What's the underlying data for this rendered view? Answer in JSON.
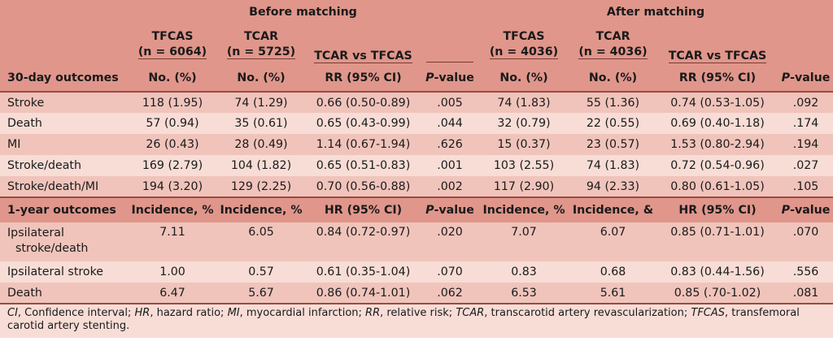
{
  "header": {
    "before": "Before matching",
    "after": "After matching",
    "before_tfcas": [
      "TFCAS",
      "(n = 6064)"
    ],
    "before_tcar": [
      "TCAR",
      "(n = 5725)"
    ],
    "before_cmp": "TCAR vs TFCAS",
    "after_tfcas": [
      "TFCAS",
      "(n = 4036)"
    ],
    "after_tcar": [
      "TCAR",
      "(n = 4036)"
    ],
    "after_cmp": "TCAR vs TFCAS",
    "row_label": "30-day outcomes",
    "c1": "No. (%)",
    "c2": "No. (%)",
    "c3": "RR (95% CI)",
    "c4_p": "P",
    "c4_rest": "-value",
    "c5": "No. (%)",
    "c6": "No. (%)",
    "c7": "RR (95% CI)",
    "c8_p": "P",
    "c8_rest": "-value"
  },
  "rows30": [
    {
      "label": "Stroke",
      "v": [
        "118 (1.95)",
        "74 (1.29)",
        "0.66 (0.50-0.89)",
        ".005",
        "74 (1.83)",
        "55 (1.36)",
        "0.74 (0.53-1.05)",
        ".092"
      ]
    },
    {
      "label": "Death",
      "v": [
        "57 (0.94)",
        "35 (0.61)",
        "0.65 (0.43-0.99)",
        ".044",
        "32 (0.79)",
        "22 (0.55)",
        "0.69 (0.40-1.18)",
        ".174"
      ]
    },
    {
      "label": "MI",
      "v": [
        "26 (0.43)",
        "28 (0.49)",
        "1.14 (0.67-1.94)",
        ".626",
        "15 (0.37)",
        "23 (0.57)",
        "1.53 (0.80-2.94)",
        ".194"
      ]
    },
    {
      "label": "Stroke/death",
      "v": [
        "169 (2.79)",
        "104 (1.82)",
        "0.65 (0.51-0.83)",
        ".001",
        "103 (2.55)",
        "74 (1.83)",
        "0.72 (0.54-0.96)",
        ".027"
      ]
    },
    {
      "label": "Stroke/death/MI",
      "v": [
        "194 (3.20)",
        "129 (2.25)",
        "0.70 (0.56-0.88)",
        ".002",
        "117 (2.90)",
        "94 (2.33)",
        "0.80 (0.61-1.05)",
        ".105"
      ]
    }
  ],
  "year_header": {
    "label": "1-year outcomes",
    "c1": "Incidence, %",
    "c2": "Incidence, %",
    "c3": "HR (95% CI)",
    "c4_p": "P",
    "c4_rest": "-value",
    "c5": "Incidence, %",
    "c6": "Incidence, &",
    "c7": "HR (95% CI)",
    "c8_p": "P",
    "c8_rest": "-value"
  },
  "rows1y": [
    {
      "label": [
        "Ipsilateral",
        "stroke/death"
      ],
      "v": [
        "7.11",
        "6.05",
        "0.84 (0.72-0.97)",
        ".020",
        "7.07",
        "6.07",
        "0.85 (0.71-1.01)",
        ".070"
      ]
    },
    {
      "label": "Ipsilateral stroke",
      "v": [
        "1.00",
        "0.57",
        "0.61 (0.35-1.04)",
        ".070",
        "0.83",
        "0.68",
        "0.83 (0.44-1.56)",
        ".556"
      ]
    },
    {
      "label": "Death",
      "v": [
        "6.47",
        "5.67",
        "0.86 (0.74-1.01)",
        ".062",
        "6.53",
        "5.61",
        "0.85 (.70-1.02)",
        ".081"
      ]
    }
  ],
  "footnote": [
    {
      "abbr": "CI",
      "text": ", Confidence interval; "
    },
    {
      "abbr": "HR",
      "text": ", hazard ratio; "
    },
    {
      "abbr": "MI",
      "text": ", myocardial infarction; "
    },
    {
      "abbr": "RR",
      "text": ", relative risk; "
    },
    {
      "abbr": "TCAR",
      "text": ", transcarotid artery revascularization; "
    },
    {
      "abbr": "TFCAS",
      "text": ", transfemoral carotid artery stenting."
    }
  ],
  "colors": {
    "header_bg": "#e0968b",
    "row_dark": "#f0c4bb",
    "row_light": "#f7ddd6"
  }
}
